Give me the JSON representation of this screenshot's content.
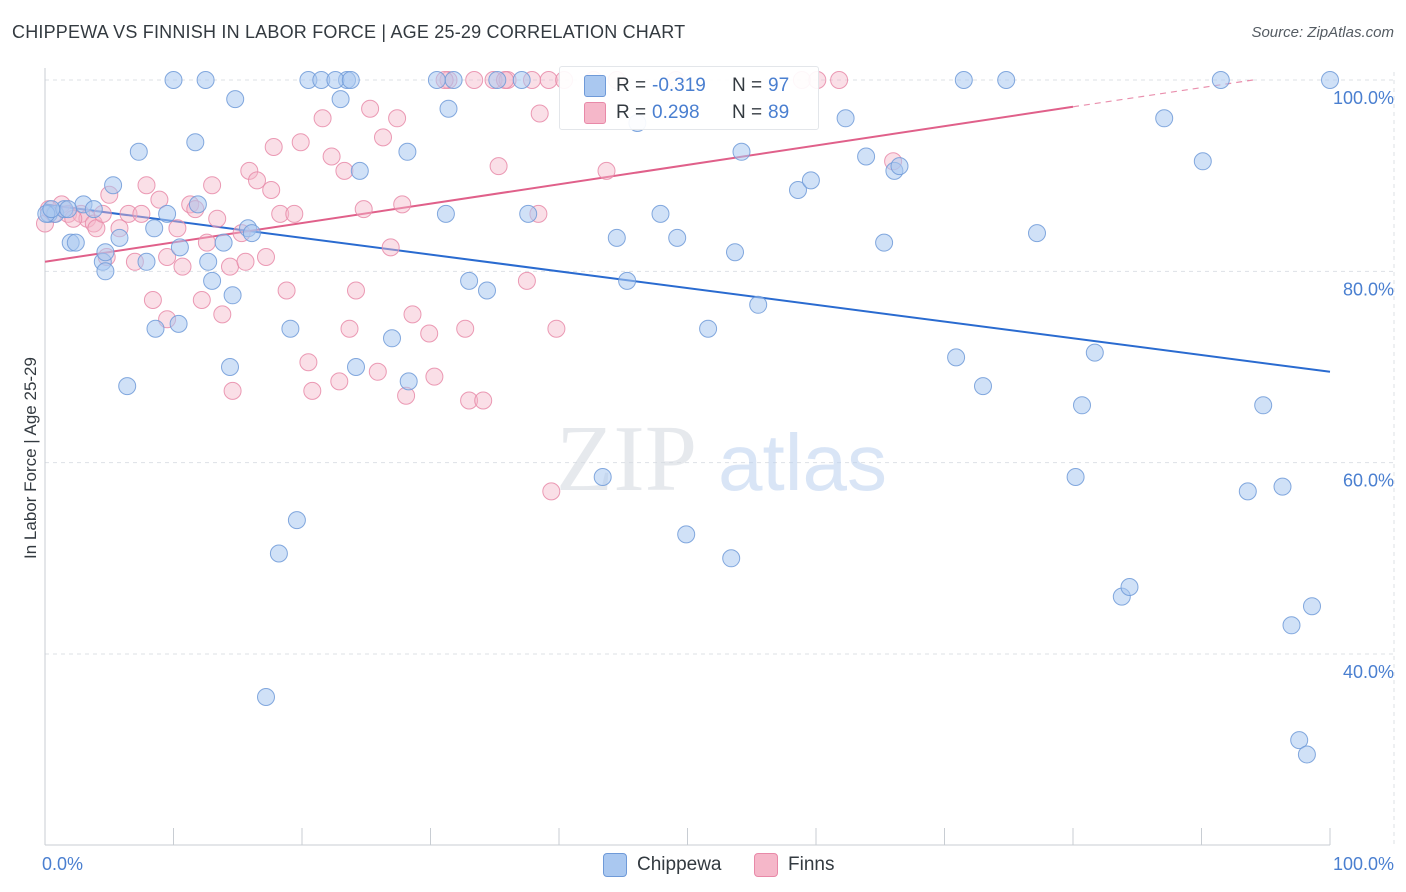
{
  "title": "CHIPPEWA VS FINNISH IN LABOR FORCE | AGE 25-29 CORRELATION CHART",
  "source": "Source: ZipAtlas.com",
  "watermark": {
    "zip": "ZIP",
    "atlas": "atlas"
  },
  "colors": {
    "chippewa_fill": "#aac8f0",
    "chippewa_stroke": "#6f9ad8",
    "chippewa_line": "#2a6bd0",
    "finns_fill": "#f5b7c9",
    "finns_stroke": "#e889a8",
    "finns_line": "#e0608a",
    "grid": "#dde1e6",
    "axis_text": "#4a7fd0"
  },
  "legend_top": {
    "rows": [
      {
        "r_label": "R =",
        "r_value": "-0.319",
        "n_label": "N =",
        "n_value": "97"
      },
      {
        "r_label": "R =",
        "r_value": "0.298",
        "n_label": "N =",
        "n_value": "89"
      }
    ]
  },
  "legend_bottom": [
    "Chippewa",
    "Finns"
  ],
  "chart_data": {
    "type": "scatter",
    "title": "CHIPPEWA VS FINNISH IN LABOR FORCE | AGE 25-29 CORRELATION CHART",
    "xlabel": "",
    "ylabel": "In Labor Force | Age 25-29",
    "xlim": [
      0,
      100
    ],
    "ylim": [
      20,
      102
    ],
    "x_tick_labels": [
      "0.0%",
      "100.0%"
    ],
    "y_ticks": [
      40,
      60,
      80,
      100
    ],
    "y_tick_labels": [
      "40.0%",
      "60.0%",
      "80.0%",
      "100.0%"
    ],
    "grid": true,
    "legend_position": "top-center",
    "series": [
      {
        "name": "Chippewa",
        "R": -0.319,
        "N": 97,
        "trend": {
          "x": [
            0,
            100
          ],
          "y": [
            87.0,
            69.5
          ]
        },
        "points": [
          [
            0.3,
            86
          ],
          [
            0.8,
            86
          ],
          [
            1.5,
            86.5
          ],
          [
            2,
            83
          ],
          [
            2.4,
            83
          ],
          [
            3,
            87
          ],
          [
            4.5,
            81
          ],
          [
            4.7,
            82
          ],
          [
            4.7,
            80
          ],
          [
            5.3,
            89
          ],
          [
            5.8,
            83.5
          ],
          [
            6.4,
            68
          ],
          [
            7.3,
            92.5
          ],
          [
            7.9,
            81
          ],
          [
            8.5,
            84.5
          ],
          [
            8.6,
            74
          ],
          [
            9.5,
            86
          ],
          [
            10.4,
            74.5
          ],
          [
            10.5,
            82.5
          ],
          [
            11.7,
            93.5
          ],
          [
            11.9,
            87
          ],
          [
            12.7,
            81
          ],
          [
            13,
            79
          ],
          [
            13.9,
            83
          ],
          [
            14.4,
            70
          ],
          [
            14.6,
            77.5
          ],
          [
            14.8,
            98
          ],
          [
            15.8,
            84.5
          ],
          [
            16.1,
            84
          ],
          [
            17.2,
            35.5
          ],
          [
            18.2,
            50.5
          ],
          [
            19.1,
            74
          ],
          [
            19.6,
            54
          ],
          [
            23.0,
            98
          ],
          [
            23.5,
            100
          ],
          [
            24.2,
            70
          ],
          [
            24.5,
            90.5
          ],
          [
            27,
            73
          ],
          [
            28.2,
            92.5
          ],
          [
            28.3,
            68.5
          ],
          [
            31.2,
            86
          ],
          [
            31.4,
            97
          ],
          [
            33,
            79
          ],
          [
            34.4,
            78
          ],
          [
            37.6,
            86
          ],
          [
            43.4,
            58.5
          ],
          [
            44.5,
            83.5
          ],
          [
            45.3,
            79
          ],
          [
            46.1,
            95.5
          ],
          [
            47.9,
            86
          ],
          [
            49.2,
            83.5
          ],
          [
            49.9,
            52.5
          ],
          [
            51.6,
            74
          ],
          [
            53.4,
            50
          ],
          [
            53.7,
            82
          ],
          [
            54.2,
            92.5
          ],
          [
            55.5,
            76.5
          ],
          [
            58.6,
            88.5
          ],
          [
            59.6,
            89.5
          ],
          [
            62.3,
            96
          ],
          [
            63.9,
            92
          ],
          [
            65.3,
            83
          ],
          [
            66.1,
            90.5
          ],
          [
            66.5,
            91
          ],
          [
            70.9,
            71
          ],
          [
            73,
            68
          ],
          [
            77.2,
            84
          ],
          [
            80.7,
            66
          ],
          [
            80.2,
            58.5
          ],
          [
            81.7,
            71.5
          ],
          [
            83.8,
            46
          ],
          [
            84.4,
            47
          ],
          [
            87.1,
            96
          ],
          [
            90.1,
            91.5
          ],
          [
            93.6,
            57
          ],
          [
            94.8,
            66
          ],
          [
            96.3,
            57.5
          ],
          [
            97,
            43
          ],
          [
            97.6,
            31
          ],
          [
            98.2,
            29.5
          ],
          [
            98.6,
            45
          ],
          [
            10,
            100
          ],
          [
            12.5,
            100
          ],
          [
            20.5,
            100
          ],
          [
            21.5,
            100
          ],
          [
            22.6,
            100
          ],
          [
            23.8,
            100
          ],
          [
            30.5,
            100
          ],
          [
            31.8,
            100
          ],
          [
            35.2,
            100
          ],
          [
            37.1,
            100
          ],
          [
            71.5,
            100
          ],
          [
            74.8,
            100
          ],
          [
            91.5,
            100
          ],
          [
            100,
            100
          ],
          [
            0.1,
            86
          ],
          [
            1.8,
            86.5
          ],
          [
            0.5,
            86.5
          ],
          [
            3.8,
            86.5
          ]
        ]
      },
      {
        "name": "Finns",
        "R": 0.298,
        "N": 89,
        "trend": {
          "x": [
            0,
            80,
            94
          ],
          "y": [
            81.0,
            97.2,
            100.0
          ],
          "dashed_from_x": 80
        },
        "points": [
          [
            0,
            85
          ],
          [
            0.7,
            86
          ],
          [
            1.3,
            87
          ],
          [
            1.8,
            86
          ],
          [
            2.8,
            86
          ],
          [
            3.3,
            85.5
          ],
          [
            3.8,
            85
          ],
          [
            4,
            84.5
          ],
          [
            4.5,
            86
          ],
          [
            4.8,
            81.5
          ],
          [
            5,
            88
          ],
          [
            5.8,
            84.5
          ],
          [
            6.5,
            86
          ],
          [
            7,
            81
          ],
          [
            7.5,
            86
          ],
          [
            7.9,
            89
          ],
          [
            8.4,
            77
          ],
          [
            8.9,
            87.5
          ],
          [
            9.5,
            81.5
          ],
          [
            9.5,
            75
          ],
          [
            10.3,
            84.5
          ],
          [
            10.7,
            80.5
          ],
          [
            11.3,
            87
          ],
          [
            11.7,
            86.5
          ],
          [
            12.2,
            77
          ],
          [
            12.6,
            83
          ],
          [
            13,
            89
          ],
          [
            13.4,
            85.5
          ],
          [
            13.8,
            75.5
          ],
          [
            14.4,
            80.5
          ],
          [
            14.6,
            67.5
          ],
          [
            15.3,
            84
          ],
          [
            15.6,
            81
          ],
          [
            15.9,
            90.5
          ],
          [
            16.5,
            89.5
          ],
          [
            17.2,
            81.5
          ],
          [
            17.6,
            88.5
          ],
          [
            17.8,
            93
          ],
          [
            18.3,
            86
          ],
          [
            18.8,
            78
          ],
          [
            19.4,
            86
          ],
          [
            19.9,
            93.5
          ],
          [
            20.5,
            70.5
          ],
          [
            20.8,
            67.5
          ],
          [
            21.6,
            96
          ],
          [
            22.3,
            92
          ],
          [
            22.9,
            68.5
          ],
          [
            23.3,
            90.5
          ],
          [
            23.7,
            74
          ],
          [
            24.2,
            78
          ],
          [
            24.8,
            86.5
          ],
          [
            25.3,
            97
          ],
          [
            25.9,
            69.5
          ],
          [
            26.3,
            94
          ],
          [
            26.9,
            82.5
          ],
          [
            27.4,
            96
          ],
          [
            27.8,
            87
          ],
          [
            28.1,
            67
          ],
          [
            28.6,
            75.5
          ],
          [
            29.9,
            73.5
          ],
          [
            30.3,
            69
          ],
          [
            31.4,
            100
          ],
          [
            32.7,
            74
          ],
          [
            33,
            66.5
          ],
          [
            34.1,
            66.5
          ],
          [
            34.9,
            100
          ],
          [
            35.3,
            91
          ],
          [
            36,
            100
          ],
          [
            37.5,
            79
          ],
          [
            38.4,
            86
          ],
          [
            38.5,
            96.5
          ],
          [
            39.4,
            57
          ],
          [
            39.8,
            74
          ],
          [
            43.7,
            90.5
          ],
          [
            49.1,
            100
          ],
          [
            66,
            91.5
          ],
          [
            31.1,
            100
          ],
          [
            33.4,
            100
          ],
          [
            35.8,
            100
          ],
          [
            37.9,
            100
          ],
          [
            39.2,
            100
          ],
          [
            40.4,
            100
          ],
          [
            42.7,
            100
          ],
          [
            44.5,
            100
          ],
          [
            58.9,
            100
          ],
          [
            60.1,
            100
          ],
          [
            61.8,
            100
          ],
          [
            0.3,
            86.5
          ],
          [
            2.2,
            85.5
          ]
        ]
      }
    ]
  }
}
